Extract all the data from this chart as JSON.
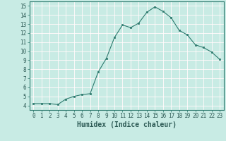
{
  "x": [
    0,
    1,
    2,
    3,
    4,
    5,
    6,
    7,
    8,
    9,
    10,
    11,
    12,
    13,
    14,
    15,
    16,
    17,
    18,
    19,
    20,
    21,
    22,
    23
  ],
  "y": [
    4.2,
    4.2,
    4.2,
    4.1,
    4.7,
    5.0,
    5.2,
    5.3,
    7.7,
    9.2,
    11.5,
    12.9,
    12.6,
    13.1,
    14.3,
    14.9,
    14.4,
    13.7,
    12.3,
    11.8,
    10.7,
    10.4,
    9.9,
    9.1
  ],
  "line_color": "#2d7a6e",
  "marker": "s",
  "marker_size": 2.0,
  "xlabel": "Humidex (Indice chaleur)",
  "xlim": [
    -0.5,
    23.5
  ],
  "ylim": [
    3.5,
    15.5
  ],
  "yticks": [
    4,
    5,
    6,
    7,
    8,
    9,
    10,
    11,
    12,
    13,
    14,
    15
  ],
  "xticks": [
    0,
    1,
    2,
    3,
    4,
    5,
    6,
    7,
    8,
    9,
    10,
    11,
    12,
    13,
    14,
    15,
    16,
    17,
    18,
    19,
    20,
    21,
    22,
    23
  ],
  "bg_color": "#c8ebe4",
  "grid_major_color": "#ffffff",
  "grid_minor_color": "#e8c8c8",
  "spine_color": "#2d7a6e",
  "tick_label_fontsize": 5.5,
  "xlabel_fontsize": 7.0
}
